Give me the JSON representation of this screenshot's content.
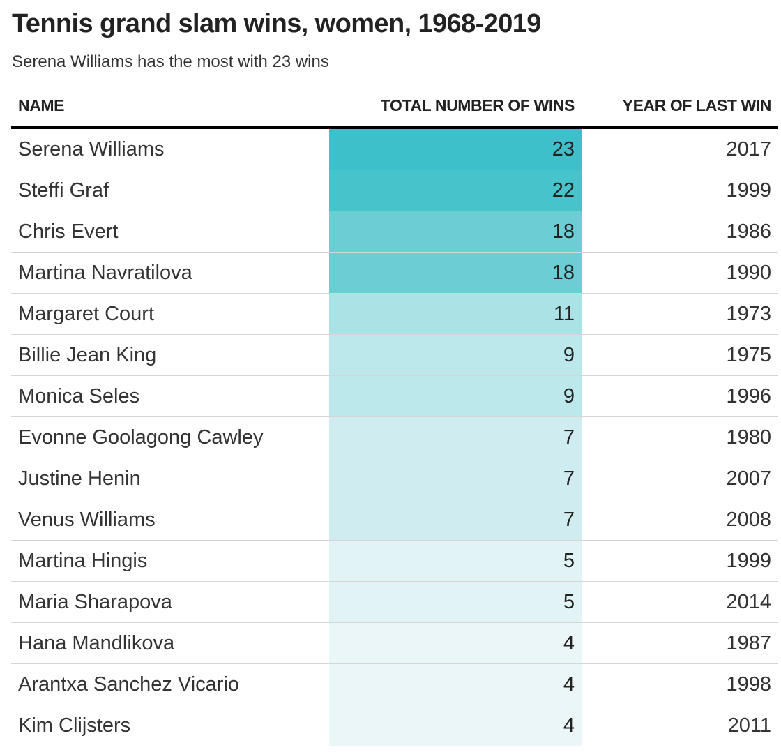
{
  "title": "Tennis grand slam wins, women, 1968-2019",
  "subtitle": "Serena Williams has the most with 23 wins",
  "colors": {
    "header_rule": "#000000",
    "row_divider": "#d6d6d6",
    "heat_low": "#eaf6f7",
    "heat_high": "#3dc0c9"
  },
  "chart_data": {
    "type": "table",
    "columns": [
      "NAME",
      "TOTAL NUMBER OF WINS",
      "YEAR OF LAST WIN"
    ],
    "rows": [
      {
        "name": "Serena Williams",
        "wins": 23,
        "year": 2017
      },
      {
        "name": "Steffi Graf",
        "wins": 22,
        "year": 1999
      },
      {
        "name": "Chris Evert",
        "wins": 18,
        "year": 1986
      },
      {
        "name": "Martina Navratilova",
        "wins": 18,
        "year": 1990
      },
      {
        "name": "Margaret Court",
        "wins": 11,
        "year": 1973
      },
      {
        "name": "Billie Jean King",
        "wins": 9,
        "year": 1975
      },
      {
        "name": "Monica Seles",
        "wins": 9,
        "year": 1996
      },
      {
        "name": "Evonne Goolagong Cawley",
        "wins": 7,
        "year": 1980
      },
      {
        "name": "Justine Henin",
        "wins": 7,
        "year": 2007
      },
      {
        "name": "Venus Williams",
        "wins": 7,
        "year": 2008
      },
      {
        "name": "Martina Hingis",
        "wins": 5,
        "year": 1999
      },
      {
        "name": "Maria Sharapova",
        "wins": 5,
        "year": 2014
      },
      {
        "name": "Hana Mandlikova",
        "wins": 4,
        "year": 1987
      },
      {
        "name": "Arantxa Sanchez Vicario",
        "wins": 4,
        "year": 1998
      },
      {
        "name": "Kim Clijsters",
        "wins": 4,
        "year": 2011
      }
    ],
    "heatmap_column": "TOTAL NUMBER OF WINS"
  }
}
